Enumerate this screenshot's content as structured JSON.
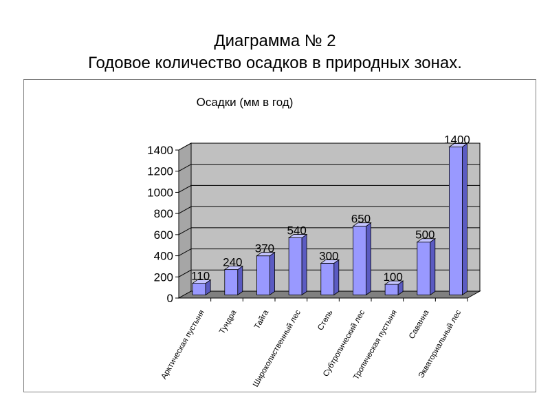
{
  "slide": {
    "title_line1": "Диаграмма № 2",
    "title_line2": "Годовое количество осадков в природных зонах."
  },
  "chart_data": {
    "type": "bar",
    "title": "Осадки (мм в год)",
    "categories": [
      "Арктическая пустыня",
      "Тундра",
      "Тайга",
      "Широколиственный лес",
      "Степь",
      "Субтропический лес",
      "Тропическая пустыня",
      "Саванна",
      "Экваториальный лес"
    ],
    "values": [
      110,
      240,
      370,
      540,
      300,
      650,
      100,
      500,
      1400
    ],
    "ylim": [
      0,
      1400
    ],
    "yticks": [
      0,
      200,
      400,
      600,
      800,
      1000,
      1200,
      1400
    ],
    "grid": true,
    "legend": "none",
    "style": "3d-column",
    "colors": {
      "bar_front": "#9999ff",
      "bar_side": "#5b5bc2",
      "bar_top": "#c4c4ff",
      "bar_outline": "#000000",
      "wall": "#c0c0c0",
      "floor": "#808080",
      "gridline": "#000000"
    }
  }
}
